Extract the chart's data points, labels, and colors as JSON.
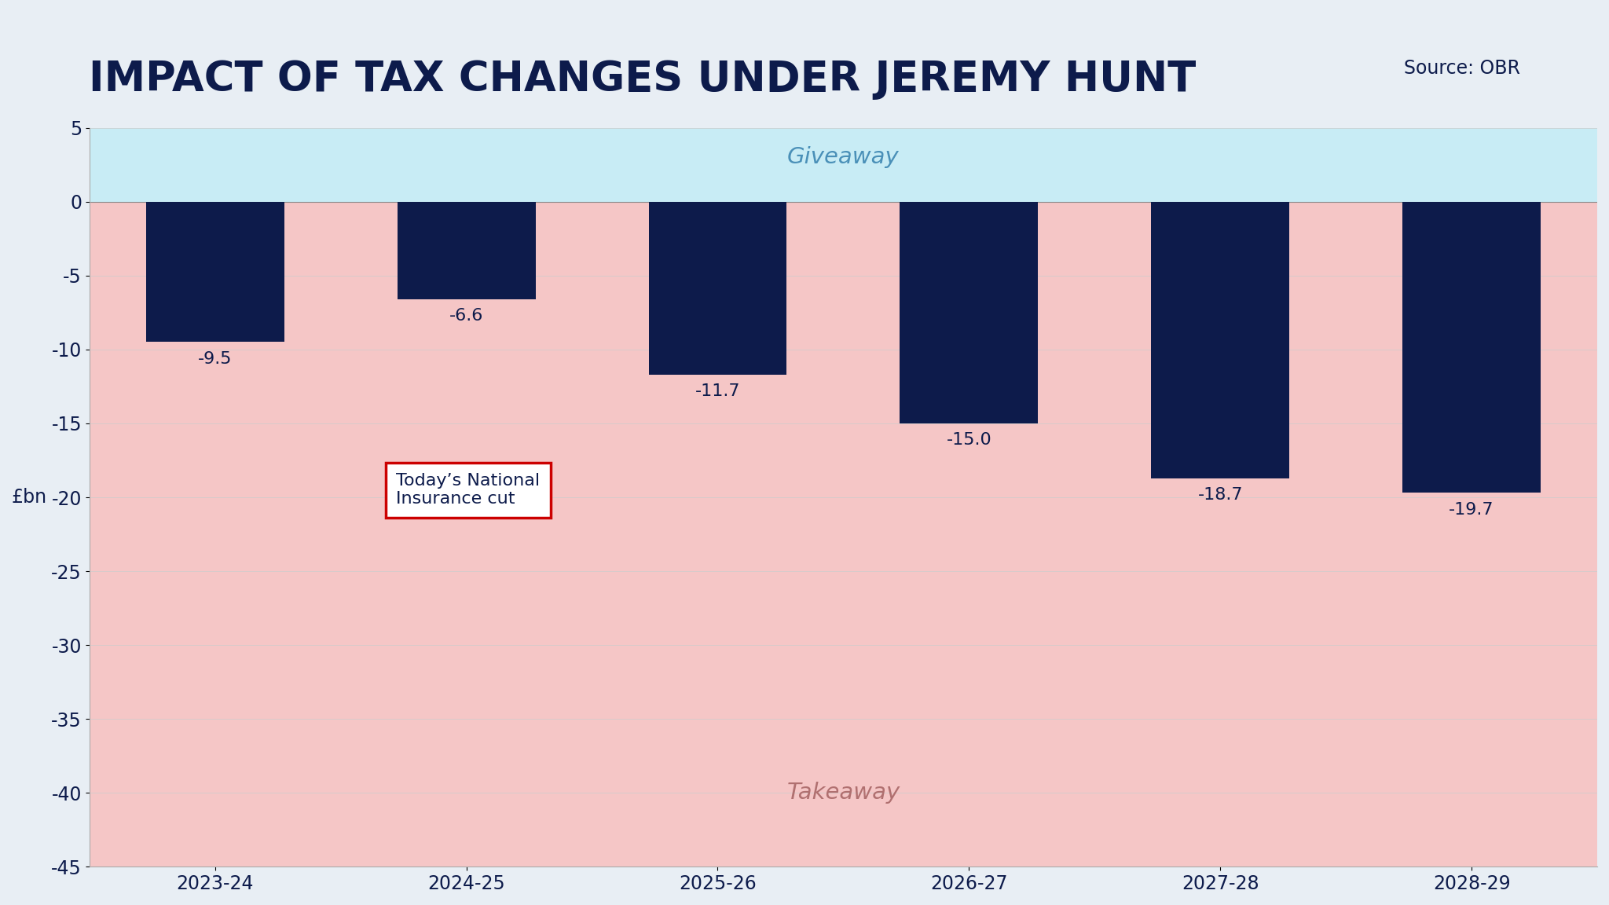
{
  "title": "IMPACT OF TAX CHANGES UNDER JEREMY HUNT",
  "source": "Source: OBR",
  "ylabel": "£bn",
  "categories": [
    "2023-24",
    "2024-25",
    "2025-26",
    "2026-27",
    "2027-28",
    "2028-29"
  ],
  "values": [
    -9.5,
    -6.6,
    -11.7,
    -15.0,
    -18.7,
    -19.7
  ],
  "value_labels": [
    "-9.5",
    "-6.6",
    "-11.7",
    "-15.0",
    "-18.7",
    "-19.7"
  ],
  "bar_color": "#0d1b4b",
  "ylim": [
    -45,
    5
  ],
  "yticks": [
    5,
    0,
    -5,
    -10,
    -15,
    -20,
    -25,
    -30,
    -35,
    -40,
    -45
  ],
  "giveaway_color": "#c8ecf5",
  "takeaway_color": "#f5c6c6",
  "giveaway_label": "Giveaway",
  "takeaway_label": "Takeaway",
  "annotation_label": "Today’s National\nInsurance cut",
  "annotation_box_color": "white",
  "annotation_box_edgecolor": "#cc0000",
  "figure_bg": "#e8eef4",
  "title_color": "#0d1b4b",
  "title_fontsize": 38,
  "source_fontsize": 17,
  "bar_width": 0.55
}
